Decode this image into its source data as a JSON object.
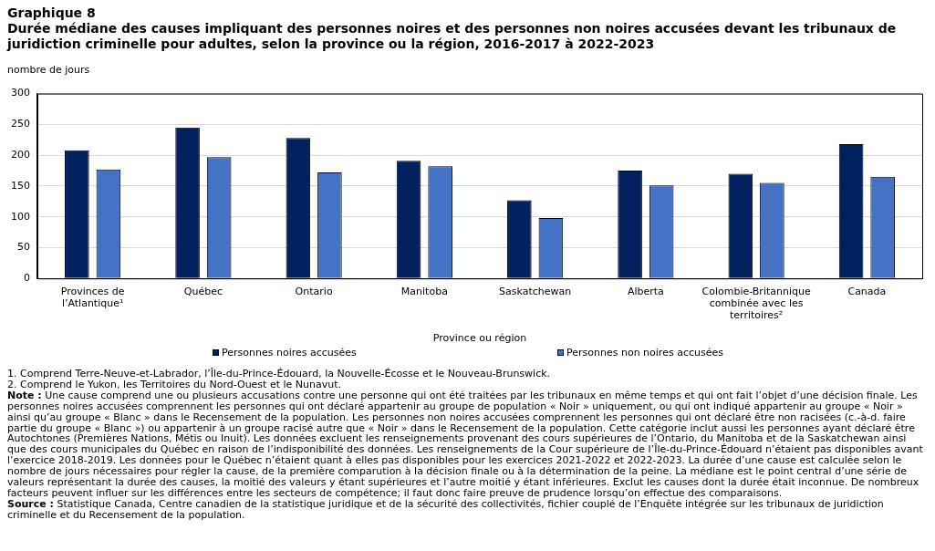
{
  "chart_data": {
    "type": "bar",
    "title": "Graphique 8",
    "subtitle": "Durée médiane des causes impliquant des personnes noires et des personnes non noires accusées devant les tribunaux de juridiction criminelle pour adultes, selon la province ou la région, 2016-2017 à 2022-2023",
    "ylabel": "nombre de jours",
    "xlabel": "Province ou région",
    "categories": [
      "Provinces de l’Atlantique¹",
      "Québec",
      "Ontario",
      "Manitoba",
      "Saskatchewan",
      "Alberta",
      "Colombie-Britannique combinée avec les territoires²",
      "Canada"
    ],
    "series": [
      {
        "name": "Personnes noires accusées",
        "color": "#02215f",
        "values": [
          208,
          245,
          228,
          191,
          127,
          175,
          170,
          218
        ]
      },
      {
        "name": "Personnes non noires accusées",
        "color": "#4472c4",
        "values": [
          177,
          197,
          172,
          182,
          98,
          151,
          155,
          165
        ]
      }
    ],
    "ylim": [
      0,
      300
    ],
    "yticks": [
      0,
      50,
      100,
      150,
      200,
      250,
      300
    ],
    "grid": "y",
    "legend": "bottom",
    "annotations": [
      "1. Comprend Terre-Neuve-et-Labrador, l’Île-du-Prince-Édouard, la Nouvelle-Écosse et le Nouveau-Brunswick.",
      "2. Comprend le Yukon, les Territoires du Nord-Ouest et le Nunavut.",
      "Note : Une cause comprend une ou plusieurs accusations contre une personne qui ont été traitées par les tribunaux en même temps et qui ont fait l’objet d’une décision finale. Les personnes noires accusées comprennent les personnes qui ont déclaré appartenir au groupe de population « Noir » uniquement, ou qui ont indiqué appartenir au groupe « Noir » ainsi qu’au groupe « Blanc » dans le Recensement de la population. Les personnes non noires accusées comprennent les personnes qui ont déclaré être non racisées (c.-à-d. faire partie du groupe « Blanc ») ou appartenir à un groupe racisé autre que « Noir » dans le Recensement de la population. Cette catégorie inclut aussi les personnes ayant déclaré être Autochtones (Premières Nations, Métis ou Inuit). Les données excluent les renseignements provenant des cours supérieures de l’Ontario, du Manitoba et de la Saskatchewan ainsi que des cours municipales du Québec en raison de l’indisponibilité des données. Les renseignements de la Cour supérieure de l’Île-du-Prince-Édouard n’étaient pas disponibles avant l’exercice 2018-2019. Les données pour le Québec n’étaient quant à elles pas disponibles pour les exercices 2021-2022 et 2022-2023. La durée d’une cause est calculée selon le nombre de jours nécessaires pour régler la cause, de la première comparution à la décision finale ou à la détermination de la peine. La médiane est le point central d’une série de valeurs représentant la durée des causes, la moitié des valeurs y étant supérieures et l’autre moitié y étant inférieures. Exclut les causes dont la durée était inconnue. De nombreux facteurs peuvent influer sur les différences entre les secteurs de compétence; il faut donc faire preuve de prudence lorsqu’on effectue des comparaisons.",
      "Source : Statistique Canada, Centre canadien de la statistique juridique et de la sécurité des collectivités, fichier couplé de l’Enquête intégrée sur les tribunaux de juridiction criminelle et du Recensement de la population."
    ]
  }
}
